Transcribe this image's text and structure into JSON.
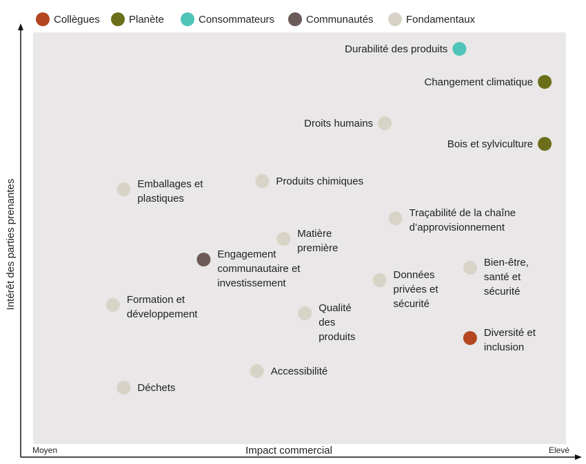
{
  "chart_data": {
    "type": "scatter",
    "xlabel": "Impact commercial",
    "ylabel": "Intérêt des parties prenantes",
    "x_min_label": "Moyen",
    "x_max_label": "Elevé",
    "legend_position": "top",
    "grid": false,
    "plot_background": "#e9e7e7",
    "categories": [
      {
        "key": "collegues",
        "name": "Collègues",
        "color": "#b4471f"
      },
      {
        "key": "planete",
        "name": "Planète",
        "color": "#6b6f1a"
      },
      {
        "key": "consommateurs",
        "name": "Consommateurs",
        "color": "#4ec5b8"
      },
      {
        "key": "communautes",
        "name": "Communautés",
        "color": "#6b5a58"
      },
      {
        "key": "fondamentaux",
        "name": "Fondamentaux",
        "color": "#d7d4c7"
      }
    ],
    "points": [
      {
        "lines": [
          "Durabilité des produits"
        ],
        "category": "consommateurs",
        "x": 0.8,
        "y": 0.96,
        "label_side": "left"
      },
      {
        "lines": [
          "Changement climatique"
        ],
        "category": "planete",
        "x": 0.96,
        "y": 0.88,
        "label_side": "left"
      },
      {
        "lines": [
          "Droits humains"
        ],
        "category": "fondamentaux",
        "x": 0.66,
        "y": 0.78,
        "label_side": "left"
      },
      {
        "lines": [
          "Bois et sylviculture"
        ],
        "category": "planete",
        "x": 0.96,
        "y": 0.73,
        "label_side": "left"
      },
      {
        "lines": [
          "Produits chimiques"
        ],
        "category": "fondamentaux",
        "x": 0.43,
        "y": 0.64,
        "label_side": "right"
      },
      {
        "lines": [
          "Emballages et",
          "plastiques"
        ],
        "category": "fondamentaux",
        "x": 0.17,
        "y": 0.62,
        "label_side": "right"
      },
      {
        "lines": [
          "Traçabilité de la chaîne",
          "d’approvisionnement"
        ],
        "category": "fondamentaux",
        "x": 0.68,
        "y": 0.55,
        "label_side": "right"
      },
      {
        "lines": [
          "Matière",
          "première"
        ],
        "category": "fondamentaux",
        "x": 0.47,
        "y": 0.5,
        "label_side": "right"
      },
      {
        "lines": [
          "Engagement",
          "communautaire et",
          "investissement"
        ],
        "category": "communautes",
        "x": 0.32,
        "y": 0.45,
        "label_side": "right"
      },
      {
        "lines": [
          "Bien-être,",
          "santé et",
          "sécurité"
        ],
        "category": "fondamentaux",
        "x": 0.82,
        "y": 0.43,
        "label_side": "right"
      },
      {
        "lines": [
          "Données",
          "privées et",
          "sécurité"
        ],
        "category": "fondamentaux",
        "x": 0.65,
        "y": 0.4,
        "label_side": "right"
      },
      {
        "lines": [
          "Formation et",
          "développement"
        ],
        "category": "fondamentaux",
        "x": 0.15,
        "y": 0.34,
        "label_side": "right"
      },
      {
        "lines": [
          "Qualité",
          "des",
          "produits"
        ],
        "category": "fondamentaux",
        "x": 0.51,
        "y": 0.32,
        "label_side": "right"
      },
      {
        "lines": [
          "Diversité et",
          "inclusion"
        ],
        "category": "collegues",
        "x": 0.82,
        "y": 0.26,
        "label_side": "right"
      },
      {
        "lines": [
          "Accessibilité"
        ],
        "category": "fondamentaux",
        "x": 0.42,
        "y": 0.18,
        "label_side": "right"
      },
      {
        "lines": [
          "Déchets"
        ],
        "category": "fondamentaux",
        "x": 0.17,
        "y": 0.14,
        "label_side": "right"
      }
    ]
  }
}
